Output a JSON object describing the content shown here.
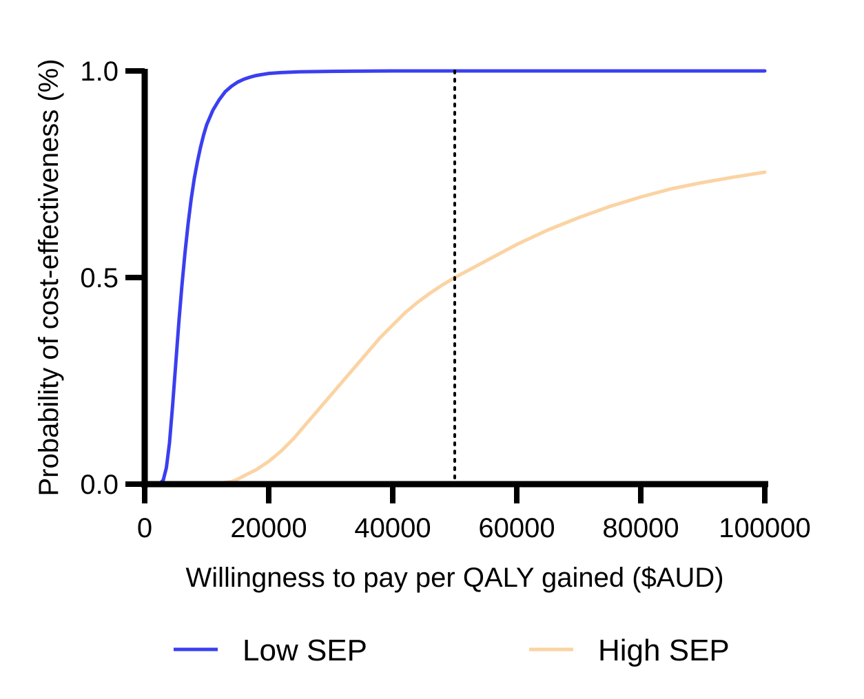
{
  "chart_data": {
    "type": "line",
    "title": "",
    "xlabel": "Willingness to pay per QALY gained ($AUD)",
    "ylabel": "Probability of cost-effectiveness (%)",
    "xlim": [
      0,
      100000
    ],
    "ylim": [
      0,
      1
    ],
    "xticks": [
      "0",
      "20000",
      "40000",
      "60000",
      "80000",
      "100000"
    ],
    "yticks": [
      "0.0",
      "0.5",
      "1.0"
    ],
    "xtick_values": [
      0,
      20000,
      40000,
      60000,
      80000,
      100000
    ],
    "ytick_values": [
      0,
      0.5,
      1.0
    ],
    "reference_line": {
      "x": 50000,
      "style": "dotted",
      "color": "#000000"
    },
    "grid": false,
    "legend_position": "bottom",
    "series": [
      {
        "name": "Low SEP",
        "color": "#3a3ff0",
        "x": [
          0,
          2000,
          2500,
          3000,
          3500,
          4000,
          4500,
          5000,
          5500,
          6000,
          6500,
          7000,
          7500,
          8000,
          8500,
          9000,
          9500,
          10000,
          11000,
          12000,
          13000,
          14000,
          15000,
          16000,
          17000,
          18000,
          20000,
          22000,
          25000,
          30000,
          40000,
          50000,
          60000,
          80000,
          100000
        ],
        "y": [
          0,
          0,
          0.002,
          0.01,
          0.04,
          0.1,
          0.19,
          0.29,
          0.39,
          0.48,
          0.56,
          0.63,
          0.69,
          0.74,
          0.78,
          0.815,
          0.845,
          0.87,
          0.905,
          0.93,
          0.95,
          0.963,
          0.973,
          0.98,
          0.985,
          0.989,
          0.994,
          0.996,
          0.998,
          0.999,
          1.0,
          1.0,
          1.0,
          1.0,
          1.0
        ]
      },
      {
        "name": "High SEP",
        "color": "#fbd3a3",
        "x": [
          0,
          10000,
          12000,
          14000,
          15000,
          16000,
          18000,
          20000,
          22000,
          24000,
          26000,
          28000,
          30000,
          32000,
          34000,
          36000,
          38000,
          40000,
          42000,
          44000,
          46000,
          48000,
          50000,
          55000,
          60000,
          65000,
          70000,
          75000,
          80000,
          85000,
          90000,
          95000,
          100000
        ],
        "y": [
          0,
          0,
          0.002,
          0.006,
          0.012,
          0.02,
          0.035,
          0.055,
          0.08,
          0.11,
          0.145,
          0.18,
          0.215,
          0.25,
          0.285,
          0.32,
          0.355,
          0.385,
          0.415,
          0.44,
          0.462,
          0.482,
          0.5,
          0.54,
          0.58,
          0.615,
          0.645,
          0.672,
          0.695,
          0.715,
          0.73,
          0.743,
          0.755
        ]
      }
    ]
  }
}
